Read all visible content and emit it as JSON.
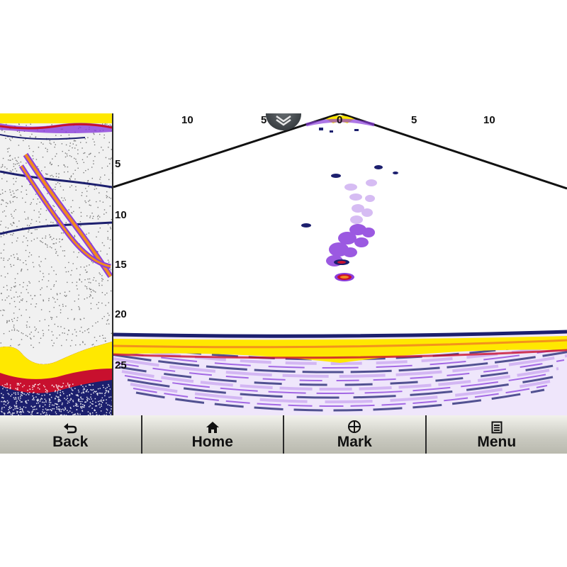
{
  "sonar": {
    "range_scale": [
      "10",
      "5",
      "0",
      "5",
      "10"
    ],
    "depth_scale": [
      "5",
      "10",
      "15",
      "20",
      "25"
    ],
    "collapse_icon": "double-chevron-down-icon"
  },
  "colors": {
    "bottom_yellow": "#ffe800",
    "echo_orange": "#f28a1e",
    "echo_red": "#c8102e",
    "echo_purple": "#8a3ddc",
    "echo_light_purple": "#c9a6f0",
    "echo_navy": "#1c1f6e"
  },
  "softkeys": [
    {
      "label": "Back",
      "icon": "back-arrow-icon"
    },
    {
      "label": "Home",
      "icon": "home-icon"
    },
    {
      "label": "Mark",
      "icon": "crosshair-icon"
    },
    {
      "label": "Menu",
      "icon": "menu-list-icon"
    }
  ]
}
